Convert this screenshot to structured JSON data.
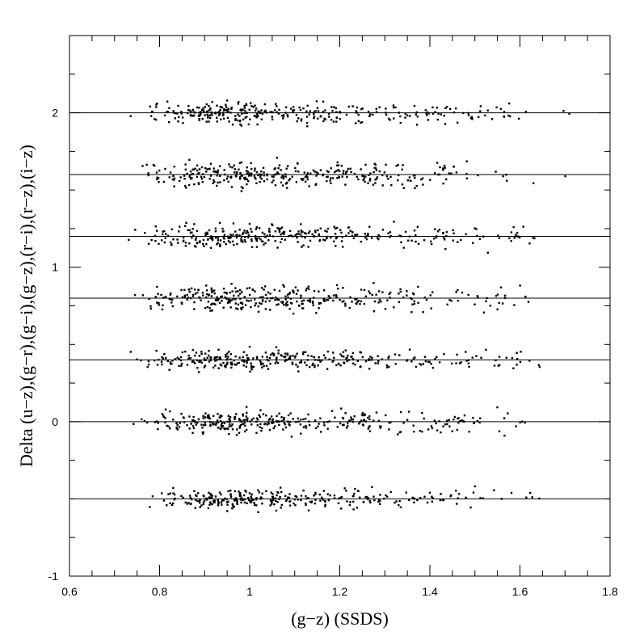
{
  "chart_data": {
    "type": "scatter",
    "title": "",
    "xlabel": "(g−z) (SSDS)",
    "ylabel": "Delta (u−z),(g−r),(g−i),(g−z),(r−i),(r−z),(i−z)",
    "xlim": [
      0.6,
      1.8
    ],
    "ylim": [
      -1,
      2.5
    ],
    "x_ticks": [
      "0.6",
      "0.8",
      "1",
      "1.2",
      "1.4",
      "1.6",
      "1.8"
    ],
    "y_ticks": [
      "-1",
      "0",
      "1",
      "2"
    ],
    "grid": false,
    "reference_lines": [
      -0.5,
      0,
      0.4,
      0.8,
      1.2,
      1.6,
      2.0
    ],
    "scatter_color": "#000000",
    "x_density": [
      {
        "x": 0.74,
        "w": 0.2
      },
      {
        "x": 0.76,
        "w": 0.4
      },
      {
        "x": 0.78,
        "w": 0.8
      },
      {
        "x": 0.8,
        "w": 1.2
      },
      {
        "x": 0.82,
        "w": 1.6
      },
      {
        "x": 0.84,
        "w": 2.2
      },
      {
        "x": 0.86,
        "w": 3.0
      },
      {
        "x": 0.88,
        "w": 3.6
      },
      {
        "x": 0.9,
        "w": 4.0
      },
      {
        "x": 0.92,
        "w": 4.2
      },
      {
        "x": 0.94,
        "w": 4.2
      },
      {
        "x": 0.96,
        "w": 4.0
      },
      {
        "x": 0.98,
        "w": 3.8
      },
      {
        "x": 1.0,
        "w": 3.8
      },
      {
        "x": 1.02,
        "w": 3.4
      },
      {
        "x": 1.04,
        "w": 3.2
      },
      {
        "x": 1.06,
        "w": 3.4
      },
      {
        "x": 1.08,
        "w": 3.0
      },
      {
        "x": 1.1,
        "w": 2.8
      },
      {
        "x": 1.12,
        "w": 2.6
      },
      {
        "x": 1.14,
        "w": 2.4
      },
      {
        "x": 1.16,
        "w": 2.0
      },
      {
        "x": 1.18,
        "w": 2.0
      },
      {
        "x": 1.2,
        "w": 2.4
      },
      {
        "x": 1.22,
        "w": 2.6
      },
      {
        "x": 1.24,
        "w": 2.4
      },
      {
        "x": 1.26,
        "w": 2.0
      },
      {
        "x": 1.28,
        "w": 1.6
      },
      {
        "x": 1.3,
        "w": 1.4
      },
      {
        "x": 1.32,
        "w": 1.2
      },
      {
        "x": 1.34,
        "w": 1.3
      },
      {
        "x": 1.36,
        "w": 1.3
      },
      {
        "x": 1.38,
        "w": 1.2
      },
      {
        "x": 1.4,
        "w": 1.3
      },
      {
        "x": 1.42,
        "w": 1.2
      },
      {
        "x": 1.44,
        "w": 1.0
      },
      {
        "x": 1.46,
        "w": 1.1
      },
      {
        "x": 1.48,
        "w": 1.0
      },
      {
        "x": 1.5,
        "w": 0.8
      },
      {
        "x": 1.52,
        "w": 0.7
      },
      {
        "x": 1.54,
        "w": 0.7
      },
      {
        "x": 1.56,
        "w": 0.6
      },
      {
        "x": 1.58,
        "w": 0.6
      },
      {
        "x": 1.6,
        "w": 0.4
      },
      {
        "x": 1.62,
        "w": 0.3
      },
      {
        "x": 1.64,
        "w": 0.2
      },
      {
        "x": 1.7,
        "w": 0.1
      }
    ],
    "series": [
      {
        "offset": -0.5,
        "count": 300,
        "scatter_sd": 0.03
      },
      {
        "offset": 0.0,
        "count": 330,
        "scatter_sd": 0.035
      },
      {
        "offset": 0.4,
        "count": 330,
        "scatter_sd": 0.03
      },
      {
        "offset": 0.8,
        "count": 340,
        "scatter_sd": 0.04
      },
      {
        "offset": 1.2,
        "count": 330,
        "scatter_sd": 0.035
      },
      {
        "offset": 1.6,
        "count": 330,
        "scatter_sd": 0.04
      },
      {
        "offset": 2.0,
        "count": 330,
        "scatter_sd": 0.035
      }
    ]
  }
}
